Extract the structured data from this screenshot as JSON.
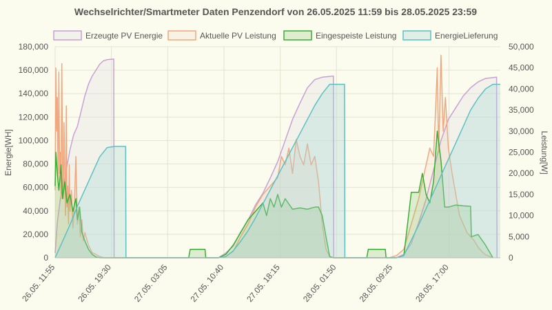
{
  "chart_data": {
    "type": "line",
    "title": "Wechselrichter/Smartmeter Daten Penzendorf von 26.05.2025 11:59 bis 28.05.2025 23:59",
    "ylabel_left": "Energie[WH]",
    "ylabel_right": "Leistung[W]",
    "ylim_left": [
      0,
      180000
    ],
    "ylim_right": [
      0,
      50000
    ],
    "y_ticks_left": [
      "0",
      "20,000",
      "40,000",
      "60,000",
      "80,000",
      "100,000",
      "120,000",
      "140,000",
      "160,000",
      "180,000"
    ],
    "y_ticks_right": [
      "0",
      "5,000",
      "10,000",
      "15,000",
      "20,000",
      "25,000",
      "30,000",
      "35,000",
      "40,000",
      "45,000",
      "50,000"
    ],
    "x_ticks": [
      "26.05. 11:55",
      "26.05. 19:30",
      "27.05. 03:05",
      "27.05. 10:40",
      "27.05. 18:15",
      "28.05. 01:50",
      "28.05. 09:25",
      "28.05. 17:00"
    ],
    "x_unit": "hours since 26.05. 11:55",
    "x_range": [
      0,
      60
    ],
    "legend_position": "top",
    "grid": true,
    "series": [
      {
        "name": "Erzeugte PV Energie",
        "axis": "left",
        "color": "#c7a0d6",
        "fill": "rgba(225,225,225,0.35)",
        "points": [
          [
            0,
            4000
          ],
          [
            0.3,
            30000
          ],
          [
            0.7,
            50000
          ],
          [
            1,
            58000
          ],
          [
            1.5,
            75000
          ],
          [
            2,
            92000
          ],
          [
            2.5,
            105000
          ],
          [
            3,
            112000
          ],
          [
            3.5,
            125000
          ],
          [
            4,
            138000
          ],
          [
            4.5,
            148000
          ],
          [
            5,
            155000
          ],
          [
            5.5,
            160000
          ],
          [
            6,
            165000
          ],
          [
            6.5,
            168000
          ],
          [
            7,
            169000
          ],
          [
            7.9,
            169500
          ],
          [
            7.95,
            0
          ],
          [
            22,
            0
          ],
          [
            23,
            4000
          ],
          [
            24,
            10000
          ],
          [
            25,
            22000
          ],
          [
            26,
            32000
          ],
          [
            27,
            45000
          ],
          [
            28,
            55000
          ],
          [
            29,
            68000
          ],
          [
            30,
            82000
          ],
          [
            31,
            100000
          ],
          [
            32,
            118000
          ],
          [
            33,
            132000
          ],
          [
            34,
            145000
          ],
          [
            35,
            152000
          ],
          [
            36,
            154000
          ],
          [
            37.5,
            155000
          ],
          [
            37.55,
            0
          ],
          [
            46,
            0
          ],
          [
            47,
            3000
          ],
          [
            48,
            12000
          ],
          [
            49,
            30000
          ],
          [
            50,
            50000
          ],
          [
            51,
            75000
          ],
          [
            52,
            100000
          ],
          [
            53,
            118000
          ],
          [
            54,
            128000
          ],
          [
            55,
            138000
          ],
          [
            56,
            145000
          ],
          [
            57,
            150000
          ],
          [
            58,
            153000
          ],
          [
            59.5,
            154000
          ],
          [
            59.55,
            0
          ]
        ]
      },
      {
        "name": "Aktuelle PV Leistung",
        "axis": "right",
        "color": "#f0a880",
        "fill": "rgba(240,170,130,0.12)",
        "points": [
          [
            0,
            16000
          ],
          [
            0.1,
            45000
          ],
          [
            0.2,
            30000
          ],
          [
            0.3,
            38000
          ],
          [
            0.4,
            18000
          ],
          [
            0.5,
            44000
          ],
          [
            0.6,
            20000
          ],
          [
            0.7,
            25000
          ],
          [
            0.8,
            14000
          ],
          [
            0.9,
            46000
          ],
          [
            1,
            22000
          ],
          [
            1.1,
            14000
          ],
          [
            1.2,
            32000
          ],
          [
            1.3,
            20000
          ],
          [
            1.4,
            10000
          ],
          [
            1.5,
            36000
          ],
          [
            1.6,
            12000
          ],
          [
            1.7,
            17000
          ],
          [
            1.8,
            8000
          ],
          [
            1.9,
            22000
          ],
          [
            2,
            11000
          ],
          [
            2.2,
            16000
          ],
          [
            2.4,
            7000
          ],
          [
            2.6,
            13000
          ],
          [
            2.8,
            24000
          ],
          [
            3,
            8000
          ],
          [
            3.2,
            12000
          ],
          [
            3.4,
            5000
          ],
          [
            3.6,
            9000
          ],
          [
            3.8,
            4000
          ],
          [
            4,
            6000
          ],
          [
            4.5,
            3000
          ],
          [
            5,
            1200
          ],
          [
            5.5,
            800
          ],
          [
            6,
            300
          ],
          [
            6.6,
            0
          ],
          [
            22,
            0
          ],
          [
            23,
            300
          ],
          [
            24,
            1500
          ],
          [
            25,
            5000
          ],
          [
            26,
            8000
          ],
          [
            27,
            12000
          ],
          [
            28,
            15000
          ],
          [
            29,
            17000
          ],
          [
            30,
            19000
          ],
          [
            30.5,
            24000
          ],
          [
            31,
            22000
          ],
          [
            31.5,
            26000
          ],
          [
            32,
            20000
          ],
          [
            32.5,
            28000
          ],
          [
            33,
            24000
          ],
          [
            33.5,
            22000
          ],
          [
            34,
            27000
          ],
          [
            34.5,
            22000
          ],
          [
            35,
            24000
          ],
          [
            35.5,
            18000
          ],
          [
            36,
            8000
          ],
          [
            36.5,
            2000
          ],
          [
            37,
            300
          ],
          [
            37.5,
            0
          ],
          [
            45,
            0
          ],
          [
            46,
            500
          ],
          [
            47,
            2000
          ],
          [
            48,
            8000
          ],
          [
            49,
            14000
          ],
          [
            49.5,
            18000
          ],
          [
            50,
            22000
          ],
          [
            50.5,
            26000
          ],
          [
            51,
            24000
          ],
          [
            51.3,
            36000
          ],
          [
            51.5,
            45000
          ],
          [
            51.7,
            25000
          ],
          [
            52,
            48000
          ],
          [
            52.3,
            30000
          ],
          [
            52.6,
            38000
          ],
          [
            53,
            26000
          ],
          [
            53.5,
            20000
          ],
          [
            54,
            15000
          ],
          [
            54.5,
            10000
          ],
          [
            55,
            8000
          ],
          [
            55.5,
            6000
          ],
          [
            56,
            5000
          ],
          [
            56.5,
            4000
          ],
          [
            57,
            2500
          ],
          [
            57.5,
            1500
          ],
          [
            58,
            700
          ],
          [
            59,
            0
          ]
        ]
      },
      {
        "name": "Eingespeiste Leistung",
        "axis": "right",
        "color": "#3aad34",
        "fill": "rgba(130,200,110,0.25)",
        "points": [
          [
            0,
            17000
          ],
          [
            0.1,
            25000
          ],
          [
            0.3,
            20000
          ],
          [
            0.5,
            16000
          ],
          [
            0.8,
            22000
          ],
          [
            1,
            14000
          ],
          [
            1.3,
            18000
          ],
          [
            1.6,
            13000
          ],
          [
            2,
            15000
          ],
          [
            2.4,
            11000
          ],
          [
            2.8,
            14000
          ],
          [
            3,
            9000
          ],
          [
            3.3,
            12000
          ],
          [
            3.6,
            6000
          ],
          [
            4,
            4000
          ],
          [
            4.5,
            2000
          ],
          [
            5,
            800
          ],
          [
            5.5,
            200
          ],
          [
            6,
            0
          ],
          [
            18,
            0
          ],
          [
            18.2,
            2000
          ],
          [
            20.2,
            2000
          ],
          [
            20.3,
            0
          ],
          [
            22,
            0
          ],
          [
            23,
            800
          ],
          [
            24,
            3000
          ],
          [
            25,
            6000
          ],
          [
            26,
            9000
          ],
          [
            27,
            11000
          ],
          [
            28,
            13000
          ],
          [
            28.5,
            10000
          ],
          [
            29,
            14000
          ],
          [
            29.5,
            12000
          ],
          [
            30,
            15000
          ],
          [
            30.5,
            12000
          ],
          [
            31,
            14000
          ],
          [
            32,
            11500
          ],
          [
            33,
            11800
          ],
          [
            34,
            11500
          ],
          [
            35,
            12000
          ],
          [
            35.5,
            12000
          ],
          [
            36,
            10000
          ],
          [
            36.5,
            5000
          ],
          [
            37,
            300
          ],
          [
            37.5,
            0
          ],
          [
            42,
            0
          ],
          [
            42.2,
            2000
          ],
          [
            44.5,
            2000
          ],
          [
            44.6,
            0
          ],
          [
            46,
            0
          ],
          [
            47,
            500
          ],
          [
            48,
            15500
          ],
          [
            49,
            15500
          ],
          [
            49.5,
            20000
          ],
          [
            50,
            15000
          ],
          [
            50.5,
            13000
          ],
          [
            51,
            18000
          ],
          [
            51.5,
            30000
          ],
          [
            52,
            23000
          ],
          [
            52.5,
            12000
          ],
          [
            53,
            12000
          ],
          [
            54,
            12500
          ],
          [
            55,
            12300
          ],
          [
            56,
            12200
          ],
          [
            56.1,
            5000
          ],
          [
            57,
            5500
          ],
          [
            58,
            3000
          ],
          [
            59,
            0
          ]
        ]
      },
      {
        "name": "EnergieLieferung",
        "axis": "left",
        "color": "#5bc0c2",
        "fill": "rgba(165,215,215,0.32)",
        "points": [
          [
            0,
            0
          ],
          [
            1,
            14000
          ],
          [
            2,
            28000
          ],
          [
            3,
            44000
          ],
          [
            4,
            58000
          ],
          [
            5,
            72000
          ],
          [
            6,
            86000
          ],
          [
            7,
            94000
          ],
          [
            8,
            95000
          ],
          [
            9.5,
            95000
          ],
          [
            9.55,
            0
          ],
          [
            22,
            0
          ],
          [
            23,
            1000
          ],
          [
            24,
            6000
          ],
          [
            25,
            14000
          ],
          [
            26,
            23000
          ],
          [
            27,
            34000
          ],
          [
            28,
            46000
          ],
          [
            29,
            58000
          ],
          [
            30,
            70000
          ],
          [
            31,
            82000
          ],
          [
            32,
            94000
          ],
          [
            33,
            106000
          ],
          [
            34,
            118000
          ],
          [
            35,
            130000
          ],
          [
            36,
            140000
          ],
          [
            37,
            148000
          ],
          [
            39,
            148000
          ],
          [
            39.05,
            0
          ],
          [
            46,
            0
          ],
          [
            47,
            2000
          ],
          [
            48,
            15000
          ],
          [
            49,
            28000
          ],
          [
            50,
            42000
          ],
          [
            51,
            56000
          ],
          [
            52,
            70000
          ],
          [
            53,
            84000
          ],
          [
            54,
            98000
          ],
          [
            55,
            112000
          ],
          [
            56,
            126000
          ],
          [
            57,
            136000
          ],
          [
            58,
            144000
          ],
          [
            59,
            148000
          ],
          [
            60,
            148000
          ]
        ]
      }
    ]
  }
}
